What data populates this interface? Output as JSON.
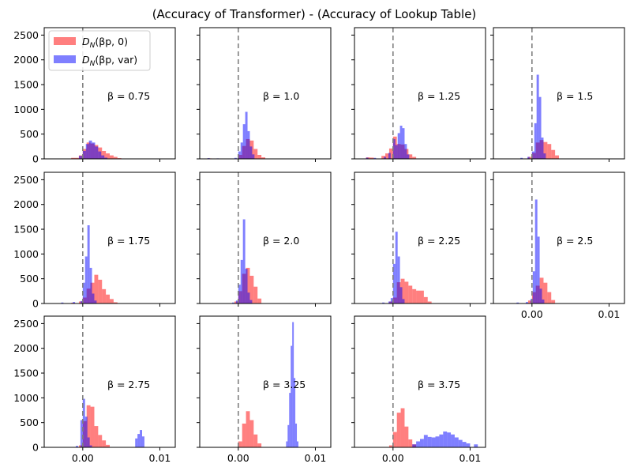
{
  "chart_data": {
    "type": "histogram-grid",
    "title": "(Accuracy of Transformer) - (Accuracy of Lookup Table)",
    "legend": {
      "placement": "top-left of first panel",
      "entries": [
        {
          "label": "D_N(βp, 0)",
          "name": "D",
          "sub": "N",
          "args": "(βp, 0)",
          "color": "#ff0000",
          "alpha": 0.5
        },
        {
          "label": "D_N(βp, var)",
          "name": "D",
          "sub": "N",
          "args": "(βp, var)",
          "color": "#0000ff",
          "alpha": 0.5
        }
      ]
    },
    "colors": {
      "red": "#ff0000",
      "blue": "#0000ff",
      "ref_line": "#808080"
    },
    "reference_line": {
      "x": 0.0,
      "style": "dashed"
    },
    "x_range": [
      -0.005,
      0.012
    ],
    "y_range": [
      0,
      2650
    ],
    "x_ticks": [
      {
        "v": 0.0,
        "label": "0.00"
      },
      {
        "v": 0.01,
        "label": "0.01"
      }
    ],
    "y_ticks": [
      {
        "v": 0,
        "label": "0"
      },
      {
        "v": 500,
        "label": "500"
      },
      {
        "v": 1000,
        "label": "1000"
      },
      {
        "v": 1500,
        "label": "1500"
      },
      {
        "v": 2000,
        "label": "2000"
      },
      {
        "v": 2500,
        "label": "2500"
      }
    ],
    "panels": [
      {
        "beta_label": "β = 0.75",
        "red": [
          [
            -0.0015,
            -0.0005,
            20
          ],
          [
            -0.0005,
            0.0,
            70
          ],
          [
            0.0,
            0.0005,
            200
          ],
          [
            0.0005,
            0.001,
            330
          ],
          [
            0.001,
            0.0015,
            310
          ],
          [
            0.0015,
            0.002,
            280
          ],
          [
            0.002,
            0.0025,
            230
          ],
          [
            0.0025,
            0.003,
            160
          ],
          [
            0.003,
            0.0035,
            110
          ],
          [
            0.0035,
            0.004,
            70
          ],
          [
            0.004,
            0.0045,
            40
          ],
          [
            0.0045,
            0.005,
            15
          ]
        ],
        "blue": [
          [
            -0.0005,
            0.0,
            60
          ],
          [
            0.0,
            0.0004,
            160
          ],
          [
            0.0004,
            0.0008,
            300
          ],
          [
            0.0008,
            0.0012,
            370
          ],
          [
            0.0012,
            0.0016,
            330
          ],
          [
            0.0016,
            0.002,
            250
          ],
          [
            0.002,
            0.0024,
            150
          ],
          [
            0.0024,
            0.0028,
            70
          ],
          [
            0.0028,
            0.0032,
            25
          ]
        ]
      },
      {
        "beta_label": "β = 1.0",
        "red": [
          [
            -0.004,
            -0.0035,
            10
          ],
          [
            -0.003,
            -0.0025,
            8
          ],
          [
            0.0,
            0.0005,
            80
          ],
          [
            0.0005,
            0.001,
            260
          ],
          [
            0.001,
            0.0015,
            400
          ],
          [
            0.0015,
            0.002,
            370
          ],
          [
            0.002,
            0.0025,
            200
          ],
          [
            0.0025,
            0.003,
            80
          ],
          [
            0.003,
            0.0035,
            30
          ]
        ],
        "blue": [
          [
            -0.004,
            -0.0037,
            15
          ],
          [
            -0.0028,
            -0.0025,
            10
          ],
          [
            -0.0005,
            -0.0002,
            20
          ],
          [
            0.0,
            0.0003,
            150
          ],
          [
            0.0003,
            0.0006,
            330
          ],
          [
            0.0006,
            0.0009,
            700
          ],
          [
            0.0009,
            0.0012,
            950
          ],
          [
            0.0012,
            0.0015,
            560
          ],
          [
            0.0015,
            0.0018,
            250
          ],
          [
            0.0018,
            0.0021,
            90
          ]
        ]
      },
      {
        "beta_label": "β = 1.25",
        "red": [
          [
            -0.0035,
            -0.003,
            30
          ],
          [
            -0.003,
            -0.0025,
            25
          ],
          [
            -0.0015,
            -0.001,
            60
          ],
          [
            -0.001,
            -0.0005,
            110
          ],
          [
            -0.0005,
            0.0,
            210
          ],
          [
            0.0,
            0.0005,
            450
          ],
          [
            0.0005,
            0.001,
            300
          ],
          [
            0.001,
            0.0015,
            290
          ],
          [
            0.0015,
            0.002,
            200
          ],
          [
            0.002,
            0.0025,
            90
          ],
          [
            0.0025,
            0.003,
            40
          ]
        ],
        "blue": [
          [
            -0.0035,
            -0.0032,
            25
          ],
          [
            -0.0025,
            -0.0022,
            20
          ],
          [
            -0.0012,
            -0.0009,
            40
          ],
          [
            -0.0006,
            -0.0003,
            120
          ],
          [
            0.0,
            0.0003,
            400
          ],
          [
            0.0003,
            0.0006,
            280
          ],
          [
            0.0006,
            0.0009,
            520
          ],
          [
            0.0009,
            0.0012,
            670
          ],
          [
            0.0012,
            0.0015,
            620
          ],
          [
            0.0015,
            0.0018,
            300
          ],
          [
            0.0018,
            0.0021,
            90
          ]
        ]
      },
      {
        "beta_label": "β = 1.5",
        "red": [
          [
            -0.0005,
            0.0,
            40
          ],
          [
            0.0,
            0.0005,
            120
          ],
          [
            0.0005,
            0.001,
            330
          ],
          [
            0.001,
            0.0015,
            380
          ],
          [
            0.0015,
            0.002,
            340
          ],
          [
            0.002,
            0.0025,
            300
          ],
          [
            0.0025,
            0.003,
            180
          ],
          [
            0.003,
            0.0035,
            70
          ]
        ],
        "blue": [
          [
            -0.0015,
            -0.0012,
            20
          ],
          [
            -0.0006,
            -0.0003,
            40
          ],
          [
            0.0,
            0.0003,
            150
          ],
          [
            0.0003,
            0.0006,
            720
          ],
          [
            0.0006,
            0.0009,
            1700
          ],
          [
            0.0009,
            0.0012,
            1250
          ],
          [
            0.0012,
            0.0015,
            430
          ],
          [
            0.0015,
            0.0018,
            110
          ]
        ]
      },
      {
        "beta_label": "β = 1.75",
        "red": [
          [
            -0.0015,
            -0.001,
            15
          ],
          [
            -0.0005,
            0.0,
            40
          ],
          [
            0.0,
            0.0005,
            120
          ],
          [
            0.0005,
            0.001,
            300
          ],
          [
            0.001,
            0.0015,
            420
          ],
          [
            0.0015,
            0.002,
            580
          ],
          [
            0.002,
            0.0025,
            480
          ],
          [
            0.0025,
            0.003,
            290
          ],
          [
            0.003,
            0.0035,
            180
          ],
          [
            0.0035,
            0.004,
            90
          ],
          [
            0.004,
            0.0045,
            25
          ]
        ],
        "blue": [
          [
            -0.0028,
            -0.0025,
            20
          ],
          [
            -0.0013,
            -0.001,
            30
          ],
          [
            -0.0003,
            0.0,
            50
          ],
          [
            0.0,
            0.0003,
            420
          ],
          [
            0.0003,
            0.0006,
            950
          ],
          [
            0.0006,
            0.0009,
            1580
          ],
          [
            0.0009,
            0.0012,
            720
          ],
          [
            0.0012,
            0.0015,
            200
          ],
          [
            0.0015,
            0.0018,
            60
          ]
        ]
      },
      {
        "beta_label": "β = 2.0",
        "red": [
          [
            -0.0005,
            0.0,
            40
          ],
          [
            0.0,
            0.0005,
            250
          ],
          [
            0.0005,
            0.001,
            600
          ],
          [
            0.001,
            0.0015,
            720
          ],
          [
            0.0015,
            0.002,
            560
          ],
          [
            0.002,
            0.0025,
            340
          ],
          [
            0.0025,
            0.003,
            100
          ]
        ],
        "blue": [
          [
            -0.0008,
            -0.0005,
            20
          ],
          [
            -0.0003,
            0.0,
            60
          ],
          [
            0.0,
            0.0003,
            380
          ],
          [
            0.0003,
            0.0006,
            880
          ],
          [
            0.0006,
            0.0009,
            1700
          ],
          [
            0.0009,
            0.0012,
            700
          ],
          [
            0.0012,
            0.0015,
            220
          ],
          [
            0.0015,
            0.0018,
            70
          ]
        ]
      },
      {
        "beta_label": "β = 2.25",
        "red": [
          [
            -0.0005,
            0.0,
            40
          ],
          [
            0.0,
            0.0005,
            120
          ],
          [
            0.0005,
            0.001,
            430
          ],
          [
            0.001,
            0.0015,
            500
          ],
          [
            0.0015,
            0.002,
            440
          ],
          [
            0.002,
            0.0025,
            360
          ],
          [
            0.0025,
            0.003,
            290
          ],
          [
            0.003,
            0.0035,
            260
          ],
          [
            0.0035,
            0.004,
            260
          ],
          [
            0.004,
            0.0045,
            130
          ],
          [
            0.0045,
            0.005,
            40
          ]
        ],
        "blue": [
          [
            -0.0014,
            -0.0011,
            20
          ],
          [
            -0.0006,
            -0.0003,
            40
          ],
          [
            -0.0003,
            0.0,
            110
          ],
          [
            0.0,
            0.0003,
            800
          ],
          [
            0.0003,
            0.0006,
            1450
          ],
          [
            0.0006,
            0.0009,
            950
          ],
          [
            0.0009,
            0.0012,
            330
          ],
          [
            0.0012,
            0.0015,
            90
          ]
        ]
      },
      {
        "beta_label": "β = 2.5",
        "red": [
          [
            -0.0005,
            0.0,
            60
          ],
          [
            0.0,
            0.0005,
            230
          ],
          [
            0.0005,
            0.001,
            360
          ],
          [
            0.001,
            0.0015,
            520
          ],
          [
            0.0015,
            0.002,
            420
          ],
          [
            0.002,
            0.0025,
            230
          ],
          [
            0.0025,
            0.003,
            70
          ]
        ],
        "blue": [
          [
            -0.002,
            -0.0017,
            20
          ],
          [
            -0.0008,
            -0.0005,
            30
          ],
          [
            -0.0002,
            0.0001,
            90
          ],
          [
            0.0001,
            0.0004,
            650
          ],
          [
            0.0004,
            0.0007,
            2100
          ],
          [
            0.0007,
            0.001,
            1350
          ],
          [
            0.001,
            0.0013,
            300
          ],
          [
            0.0013,
            0.0016,
            80
          ]
        ]
      },
      {
        "beta_label": "β = 2.75",
        "red": [
          [
            -0.0005,
            0.0,
            40
          ],
          [
            0.0,
            0.0005,
            530
          ],
          [
            0.0005,
            0.001,
            850
          ],
          [
            0.001,
            0.0015,
            820
          ],
          [
            0.0015,
            0.002,
            430
          ],
          [
            0.002,
            0.0025,
            250
          ],
          [
            0.0025,
            0.003,
            140
          ],
          [
            0.003,
            0.0035,
            50
          ]
        ],
        "blue": [
          [
            -0.0009,
            -0.0006,
            30
          ],
          [
            -0.0003,
            0.0,
            550
          ],
          [
            0.0,
            0.0003,
            980
          ],
          [
            0.0003,
            0.0006,
            620
          ],
          [
            0.0006,
            0.0009,
            200
          ],
          [
            0.0009,
            0.0012,
            40
          ],
          [
            0.0068,
            0.0071,
            180
          ],
          [
            0.0071,
            0.0074,
            270
          ],
          [
            0.0074,
            0.0077,
            350
          ],
          [
            0.0077,
            0.008,
            220
          ]
        ]
      },
      {
        "beta_label": "β = 3.25",
        "red": [
          [
            0.0,
            0.0005,
            120
          ],
          [
            0.0005,
            0.001,
            480
          ],
          [
            0.001,
            0.0015,
            730
          ],
          [
            0.0015,
            0.002,
            550
          ],
          [
            0.002,
            0.0025,
            260
          ],
          [
            0.0025,
            0.003,
            80
          ]
        ],
        "blue": [
          [
            0.0062,
            0.0064,
            120
          ],
          [
            0.0064,
            0.0066,
            450
          ],
          [
            0.0066,
            0.0068,
            1100
          ],
          [
            0.0068,
            0.007,
            2050
          ],
          [
            0.007,
            0.0072,
            2530
          ],
          [
            0.0072,
            0.0074,
            1400
          ],
          [
            0.0074,
            0.0076,
            480
          ],
          [
            0.0076,
            0.0078,
            120
          ]
        ]
      },
      {
        "beta_label": "β = 3.75",
        "red": [
          [
            -0.0005,
            0.0,
            40
          ],
          [
            0.0,
            0.0005,
            310
          ],
          [
            0.0005,
            0.001,
            700
          ],
          [
            0.001,
            0.0015,
            790
          ],
          [
            0.0015,
            0.002,
            420
          ],
          [
            0.002,
            0.0025,
            160
          ],
          [
            0.0025,
            0.003,
            60
          ]
        ],
        "blue": [
          [
            0.0025,
            0.003,
            60
          ],
          [
            0.003,
            0.0035,
            120
          ],
          [
            0.0035,
            0.004,
            170
          ],
          [
            0.004,
            0.0045,
            250
          ],
          [
            0.0045,
            0.005,
            210
          ],
          [
            0.005,
            0.0055,
            200
          ],
          [
            0.0055,
            0.006,
            220
          ],
          [
            0.006,
            0.0065,
            260
          ],
          [
            0.0065,
            0.007,
            320
          ],
          [
            0.007,
            0.0075,
            300
          ],
          [
            0.0075,
            0.008,
            260
          ],
          [
            0.008,
            0.0085,
            200
          ],
          [
            0.0085,
            0.009,
            150
          ],
          [
            0.009,
            0.0095,
            110
          ],
          [
            0.0095,
            0.01,
            80
          ],
          [
            0.0105,
            0.011,
            60
          ]
        ]
      }
    ]
  }
}
